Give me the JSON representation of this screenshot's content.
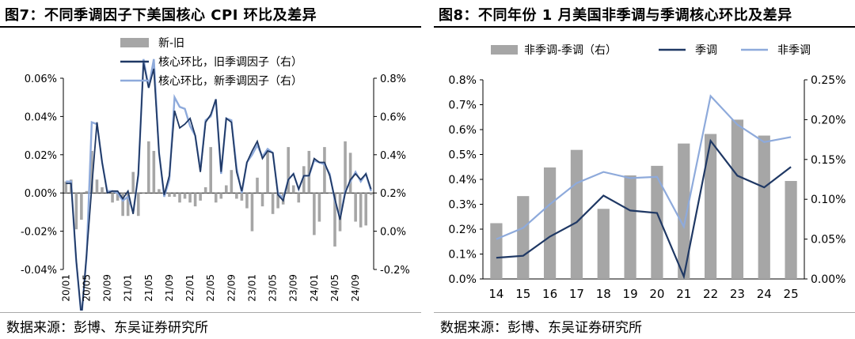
{
  "left": {
    "title": "图7：不同季调因子下美国核心 CPI 环比及差异",
    "source": "数据来源：彭博、东吴证券研究所",
    "chart_data": {
      "type": "bar+line",
      "categories": [
        "20/01",
        "20/02",
        "20/03",
        "20/04",
        "20/05",
        "20/06",
        "20/07",
        "20/08",
        "20/09",
        "20/10",
        "20/11",
        "20/12",
        "21/01",
        "21/02",
        "21/03",
        "21/04",
        "21/05",
        "21/06",
        "21/07",
        "21/08",
        "21/09",
        "21/10",
        "21/11",
        "21/12",
        "22/01",
        "22/02",
        "22/03",
        "22/04",
        "22/05",
        "22/06",
        "22/07",
        "22/08",
        "22/09",
        "22/10",
        "22/11",
        "22/12",
        "23/01",
        "23/02",
        "23/03",
        "23/04",
        "23/05",
        "23/06",
        "23/07",
        "23/08",
        "23/09",
        "23/10",
        "23/11",
        "23/12",
        "24/01",
        "24/02",
        "24/03",
        "24/04",
        "24/05",
        "24/06",
        "24/07",
        "24/08",
        "24/09",
        "24/10",
        "24/11",
        "24/12"
      ],
      "xtick_labels": [
        "20/01",
        "20/05",
        "20/09",
        "21/01",
        "21/05",
        "21/09",
        "22/01",
        "22/05",
        "22/09",
        "23/01",
        "23/05",
        "23/09",
        "24/01",
        "24/05",
        "24/09"
      ],
      "series": [
        {
          "name": "新-旧",
          "kind": "bar",
          "axis": "left",
          "color": "#a6a6a6",
          "values": [
            0.006,
            0.007,
            -0.019,
            -0.014,
            0.001,
            0.022,
            0.007,
            0.003,
            0.0,
            -0.005,
            -0.004,
            -0.012,
            -0.012,
            0.011,
            -0.012,
            0.0,
            0.027,
            0.022,
            0.002,
            0.001,
            -0.002,
            -0.002,
            -0.005,
            -0.003,
            -0.005,
            -0.007,
            -0.004,
            0.003,
            0.024,
            -0.005,
            -0.003,
            0.004,
            0.012,
            -0.003,
            -0.004,
            -0.008,
            -0.02,
            0.008,
            -0.007,
            0.023,
            -0.011,
            -0.008,
            -0.006,
            0.024,
            0.004,
            -0.005,
            0.014,
            0.022,
            -0.022,
            -0.015,
            0.024,
            0.0,
            -0.028,
            -0.02,
            0.027,
            0.021,
            -0.015,
            -0.018,
            -0.017,
            -0.001
          ]
        },
        {
          "name": "核心环比，旧季调因子（右）",
          "kind": "line",
          "axis": "right",
          "color": "#1f3864",
          "values": [
            0.25,
            0.25,
            -0.15,
            -0.45,
            -0.12,
            0.23,
            0.57,
            0.36,
            0.2,
            0.21,
            0.21,
            0.17,
            0.21,
            0.09,
            0.3,
            0.88,
            0.75,
            0.85,
            0.41,
            0.19,
            0.29,
            0.63,
            0.54,
            0.56,
            0.59,
            0.5,
            0.31,
            0.57,
            0.61,
            0.69,
            0.31,
            0.59,
            0.57,
            0.31,
            0.21,
            0.36,
            0.42,
            0.47,
            0.38,
            0.42,
            0.41,
            0.19,
            0.16,
            0.27,
            0.3,
            0.22,
            0.29,
            0.29,
            0.38,
            0.36,
            0.36,
            0.29,
            0.17,
            0.06,
            0.2,
            0.27,
            0.3,
            0.27,
            0.3,
            0.22
          ]
        },
        {
          "name": "核心环比，新季调因子（右）",
          "kind": "line",
          "axis": "right",
          "color": "#8eaadb",
          "values": [
            0.26,
            0.26,
            -0.16,
            -0.45,
            -0.13,
            0.57,
            0.56,
            0.36,
            0.21,
            0.21,
            0.2,
            0.16,
            0.18,
            0.1,
            0.29,
            0.9,
            0.75,
            0.9,
            0.41,
            0.18,
            0.27,
            0.7,
            0.65,
            0.64,
            0.55,
            0.5,
            0.32,
            0.58,
            0.6,
            0.69,
            0.3,
            0.59,
            0.58,
            0.33,
            0.2,
            0.36,
            0.4,
            0.45,
            0.39,
            0.43,
            0.41,
            0.2,
            0.17,
            0.27,
            0.3,
            0.22,
            0.29,
            0.29,
            0.37,
            0.36,
            0.35,
            0.3,
            0.16,
            0.07,
            0.21,
            0.26,
            0.31,
            0.26,
            0.3,
            0.21
          ]
        }
      ],
      "left_axis": {
        "min": -0.04,
        "max": 0.06,
        "ticks": [
          "-0.04%",
          "-0.02%",
          "0.00%",
          "0.02%",
          "0.04%",
          "0.06%"
        ],
        "tick_values": [
          -0.04,
          -0.02,
          0.0,
          0.02,
          0.04,
          0.06
        ]
      },
      "right_axis": {
        "min": -0.2,
        "max": 0.8,
        "ticks": [
          "-0.2%",
          "0.0%",
          "0.2%",
          "0.4%",
          "0.6%",
          "0.8%"
        ],
        "tick_values": [
          -0.2,
          0.0,
          0.2,
          0.4,
          0.6,
          0.8
        ]
      },
      "legend": [
        "新-旧",
        "核心环比，旧季调因子（右）",
        "核心环比，新季调因子（右）"
      ],
      "legend_position": "top-left"
    }
  },
  "right": {
    "title": "图8：不同年份 1 月美国非季调与季调核心环比及差异",
    "source": "数据来源：彭博、东吴证券研究所",
    "chart_data": {
      "type": "bar+line",
      "categories": [
        "14",
        "15",
        "16",
        "17",
        "18",
        "19",
        "20",
        "21",
        "22",
        "23",
        "24",
        "25"
      ],
      "series": [
        {
          "name": "非季调-季调（右）",
          "kind": "bar",
          "axis": "right",
          "color": "#a6a6a6",
          "values": [
            0.0007,
            0.00104,
            0.0014,
            0.00162,
            0.00088,
            0.0013,
            0.00142,
            0.0017,
            0.00182,
            0.002,
            0.0018,
            0.00123
          ]
        },
        {
          "name": "季调",
          "kind": "line",
          "axis": "left",
          "color": "#1f3864",
          "values": [
            0.00085,
            0.00093,
            0.0017,
            0.00228,
            0.00335,
            0.00275,
            0.00265,
            0.0001,
            0.00555,
            0.00415,
            0.00368,
            0.0045
          ]
        },
        {
          "name": "非季调",
          "kind": "line",
          "axis": "left",
          "color": "#8eaadb",
          "values": [
            0.0016,
            0.00205,
            0.003,
            0.00385,
            0.0043,
            0.00405,
            0.0041,
            0.0021,
            0.00735,
            0.0062,
            0.0055,
            0.0057
          ]
        }
      ],
      "left_axis": {
        "min": 0.0,
        "max": 0.008,
        "ticks": [
          "0.0%",
          "0.1%",
          "0.2%",
          "0.3%",
          "0.4%",
          "0.5%",
          "0.6%",
          "0.7%",
          "0.8%"
        ],
        "tick_values": [
          0,
          0.001,
          0.002,
          0.003,
          0.004,
          0.005,
          0.006,
          0.007,
          0.008
        ]
      },
      "right_axis": {
        "min": 0.0,
        "max": 0.0025,
        "ticks": [
          "0.00%",
          "0.05%",
          "0.10%",
          "0.15%",
          "0.20%",
          "0.25%"
        ],
        "tick_values": [
          0,
          0.0005,
          0.001,
          0.0015,
          0.002,
          0.0025
        ]
      },
      "legend": [
        "非季调-季调（右）",
        "季调",
        "非季调"
      ],
      "legend_position": "top"
    }
  }
}
